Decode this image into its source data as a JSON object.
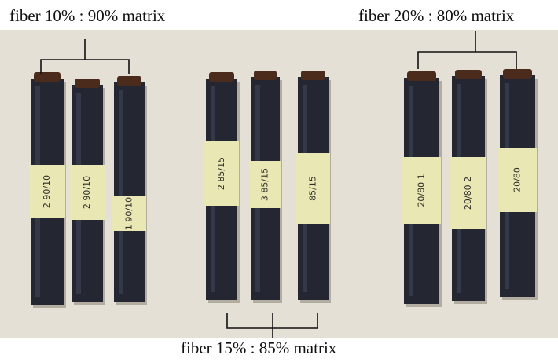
{
  "figure": {
    "labels": {
      "group_10": "fiber 10% : 90% matrix",
      "group_20": "fiber 20% : 80% matrix",
      "group_15": "fiber 15% : 85% matrix"
    },
    "colors": {
      "background": "#e8e4db",
      "specimen": "#242732",
      "tape": "#e9e7b4",
      "bracket": "#111111"
    },
    "specimens": [
      {
        "group": "fiber 10%",
        "tape_text": "2 90/10"
      },
      {
        "group": "fiber 10%",
        "tape_text": "2 90/10"
      },
      {
        "group": "fiber 10%",
        "tape_text": "1 90/10"
      },
      {
        "group": "fiber 15%",
        "tape_text": "2 85/15"
      },
      {
        "group": "fiber 15%",
        "tape_text": "3 85/15"
      },
      {
        "group": "fiber 15%",
        "tape_text": "85/15"
      },
      {
        "group": "fiber 20%",
        "tape_text": "20/80 1"
      },
      {
        "group": "fiber 20%",
        "tape_text": "20/80 2"
      },
      {
        "group": "fiber 20%",
        "tape_text": "20/80"
      }
    ]
  }
}
